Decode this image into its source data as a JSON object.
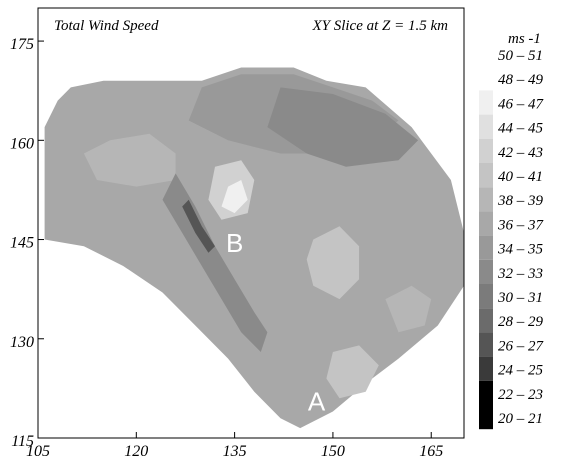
{
  "chart_data": {
    "type": "heatmap",
    "title": "Total Wind Speed",
    "subtitle": "XY Slice at Z = 1.5 km",
    "xlabel": "",
    "ylabel": "",
    "xlim": [
      105,
      170
    ],
    "ylim": [
      115,
      180
    ],
    "x_ticks": [
      "105",
      "120",
      "135",
      "150",
      "165"
    ],
    "y_ticks": [
      "115",
      "130",
      "145",
      "160",
      "175"
    ],
    "grid": false,
    "colorbar": {
      "unit": "ms -1",
      "placement": "right",
      "levels": [
        {
          "label": "50 – 51",
          "color": "#ffffff"
        },
        {
          "label": "48 – 49",
          "color": "#ffffff"
        },
        {
          "label": "46 – 47",
          "color": "#f0f0f0"
        },
        {
          "label": "44 – 45",
          "color": "#e0e0e0"
        },
        {
          "label": "42 – 43",
          "color": "#d1d1d1"
        },
        {
          "label": "40 – 41",
          "color": "#c4c4c4"
        },
        {
          "label": "38 – 39",
          "color": "#b6b6b6"
        },
        {
          "label": "36 – 37",
          "color": "#a8a8a8"
        },
        {
          "label": "34 – 35",
          "color": "#999999"
        },
        {
          "label": "32 – 33",
          "color": "#8a8a8a"
        },
        {
          "label": "30 – 31",
          "color": "#7b7b7b"
        },
        {
          "label": "28 – 29",
          "color": "#6b6b6b"
        },
        {
          "label": "26 – 27",
          "color": "#555555"
        },
        {
          "label": "24 – 25",
          "color": "#3a3a3a"
        },
        {
          "label": "22 – 23",
          "color": "#000000"
        },
        {
          "label": "20 – 21",
          "color": "#000000"
        }
      ]
    },
    "annotations": [
      {
        "text": "B",
        "x": 135,
        "y": 144.5
      },
      {
        "text": "A",
        "x": 147.5,
        "y": 120.5
      }
    ],
    "domain_polygon": [
      [
        106,
        145
      ],
      [
        106,
        162
      ],
      [
        108,
        166
      ],
      [
        110,
        168
      ],
      [
        115,
        169
      ],
      [
        122,
        169
      ],
      [
        130,
        169
      ],
      [
        136,
        171
      ],
      [
        144,
        171
      ],
      [
        149,
        169
      ],
      [
        155,
        168
      ],
      [
        162,
        162
      ],
      [
        168,
        154
      ],
      [
        170,
        146
      ],
      [
        170,
        138
      ],
      [
        166,
        132
      ],
      [
        160,
        127
      ],
      [
        156,
        124
      ],
      [
        150,
        119
      ],
      [
        145,
        116.5
      ],
      [
        142,
        118
      ],
      [
        138,
        122
      ],
      [
        134,
        127
      ],
      [
        129,
        132
      ],
      [
        124,
        137
      ],
      [
        118,
        141
      ],
      [
        112,
        144
      ]
    ],
    "regions": [
      {
        "level": "36 – 37",
        "points": [
          [
            108,
            163
          ],
          [
            112,
            164
          ],
          [
            116,
            162
          ],
          [
            118,
            158
          ],
          [
            114,
            156
          ],
          [
            109,
            158
          ]
        ]
      },
      {
        "level": "38 – 39",
        "points": [
          [
            112,
            158
          ],
          [
            116,
            160
          ],
          [
            122,
            161
          ],
          [
            126,
            158
          ],
          [
            126,
            154
          ],
          [
            120,
            153
          ],
          [
            114,
            154
          ]
        ]
      },
      {
        "level": "34 – 35",
        "points": [
          [
            130,
            168
          ],
          [
            136,
            170
          ],
          [
            144,
            170
          ],
          [
            150,
            168
          ],
          [
            156,
            166
          ],
          [
            160,
            163
          ],
          [
            156,
            160
          ],
          [
            150,
            158
          ],
          [
            142,
            158
          ],
          [
            134,
            160
          ],
          [
            128,
            163
          ]
        ]
      },
      {
        "level": "32 – 33",
        "points": [
          [
            142,
            168
          ],
          [
            150,
            167
          ],
          [
            158,
            164
          ],
          [
            163,
            160
          ],
          [
            160,
            157
          ],
          [
            152,
            156
          ],
          [
            146,
            158
          ],
          [
            140,
            162
          ]
        ]
      },
      {
        "level": "32 – 33",
        "points": [
          [
            126,
            155
          ],
          [
            129,
            150
          ],
          [
            132,
            144
          ],
          [
            135,
            139
          ],
          [
            138,
            134
          ],
          [
            140,
            131
          ],
          [
            139,
            128
          ],
          [
            136,
            131
          ],
          [
            133,
            136
          ],
          [
            130,
            141
          ],
          [
            127,
            146
          ],
          [
            124,
            151
          ]
        ]
      },
      {
        "level": "26 – 27",
        "points": [
          [
            128,
            151
          ],
          [
            130,
            147
          ],
          [
            132,
            144
          ],
          [
            131,
            143
          ],
          [
            129,
            146
          ],
          [
            127,
            150
          ]
        ]
      },
      {
        "level": "36 – 37",
        "points": [
          [
            144,
            139
          ],
          [
            150,
            135
          ],
          [
            152,
            130
          ],
          [
            149,
            124
          ],
          [
            147,
            121
          ],
          [
            143,
            124
          ],
          [
            141,
            130
          ],
          [
            141,
            136
          ]
        ]
      },
      {
        "level": "42 – 43",
        "points": [
          [
            132,
            156
          ],
          [
            136,
            157
          ],
          [
            138,
            154
          ],
          [
            137,
            149
          ],
          [
            133,
            148
          ],
          [
            131,
            151
          ]
        ]
      },
      {
        "level": "46 – 47",
        "points": [
          [
            134,
            153
          ],
          [
            136,
            154
          ],
          [
            137,
            151
          ],
          [
            135,
            149
          ],
          [
            133,
            150
          ]
        ]
      },
      {
        "level": "40 – 41",
        "points": [
          [
            147,
            145
          ],
          [
            151,
            147
          ],
          [
            154,
            144
          ],
          [
            154,
            139
          ],
          [
            151,
            136
          ],
          [
            147,
            138
          ],
          [
            146,
            142
          ]
        ]
      },
      {
        "level": "40 – 41",
        "points": [
          [
            150,
            128
          ],
          [
            154,
            129
          ],
          [
            157,
            126
          ],
          [
            155,
            122
          ],
          [
            151,
            121
          ],
          [
            149,
            124
          ]
        ]
      },
      {
        "level": "36 – 37",
        "points": [
          [
            162,
            154
          ],
          [
            166,
            152
          ],
          [
            168,
            147
          ],
          [
            166,
            143
          ],
          [
            162,
            145
          ],
          [
            160,
            149
          ]
        ]
      },
      {
        "level": "38 – 39",
        "points": [
          [
            158,
            136
          ],
          [
            162,
            138
          ],
          [
            165,
            136
          ],
          [
            164,
            132
          ],
          [
            160,
            131
          ]
        ]
      }
    ]
  }
}
